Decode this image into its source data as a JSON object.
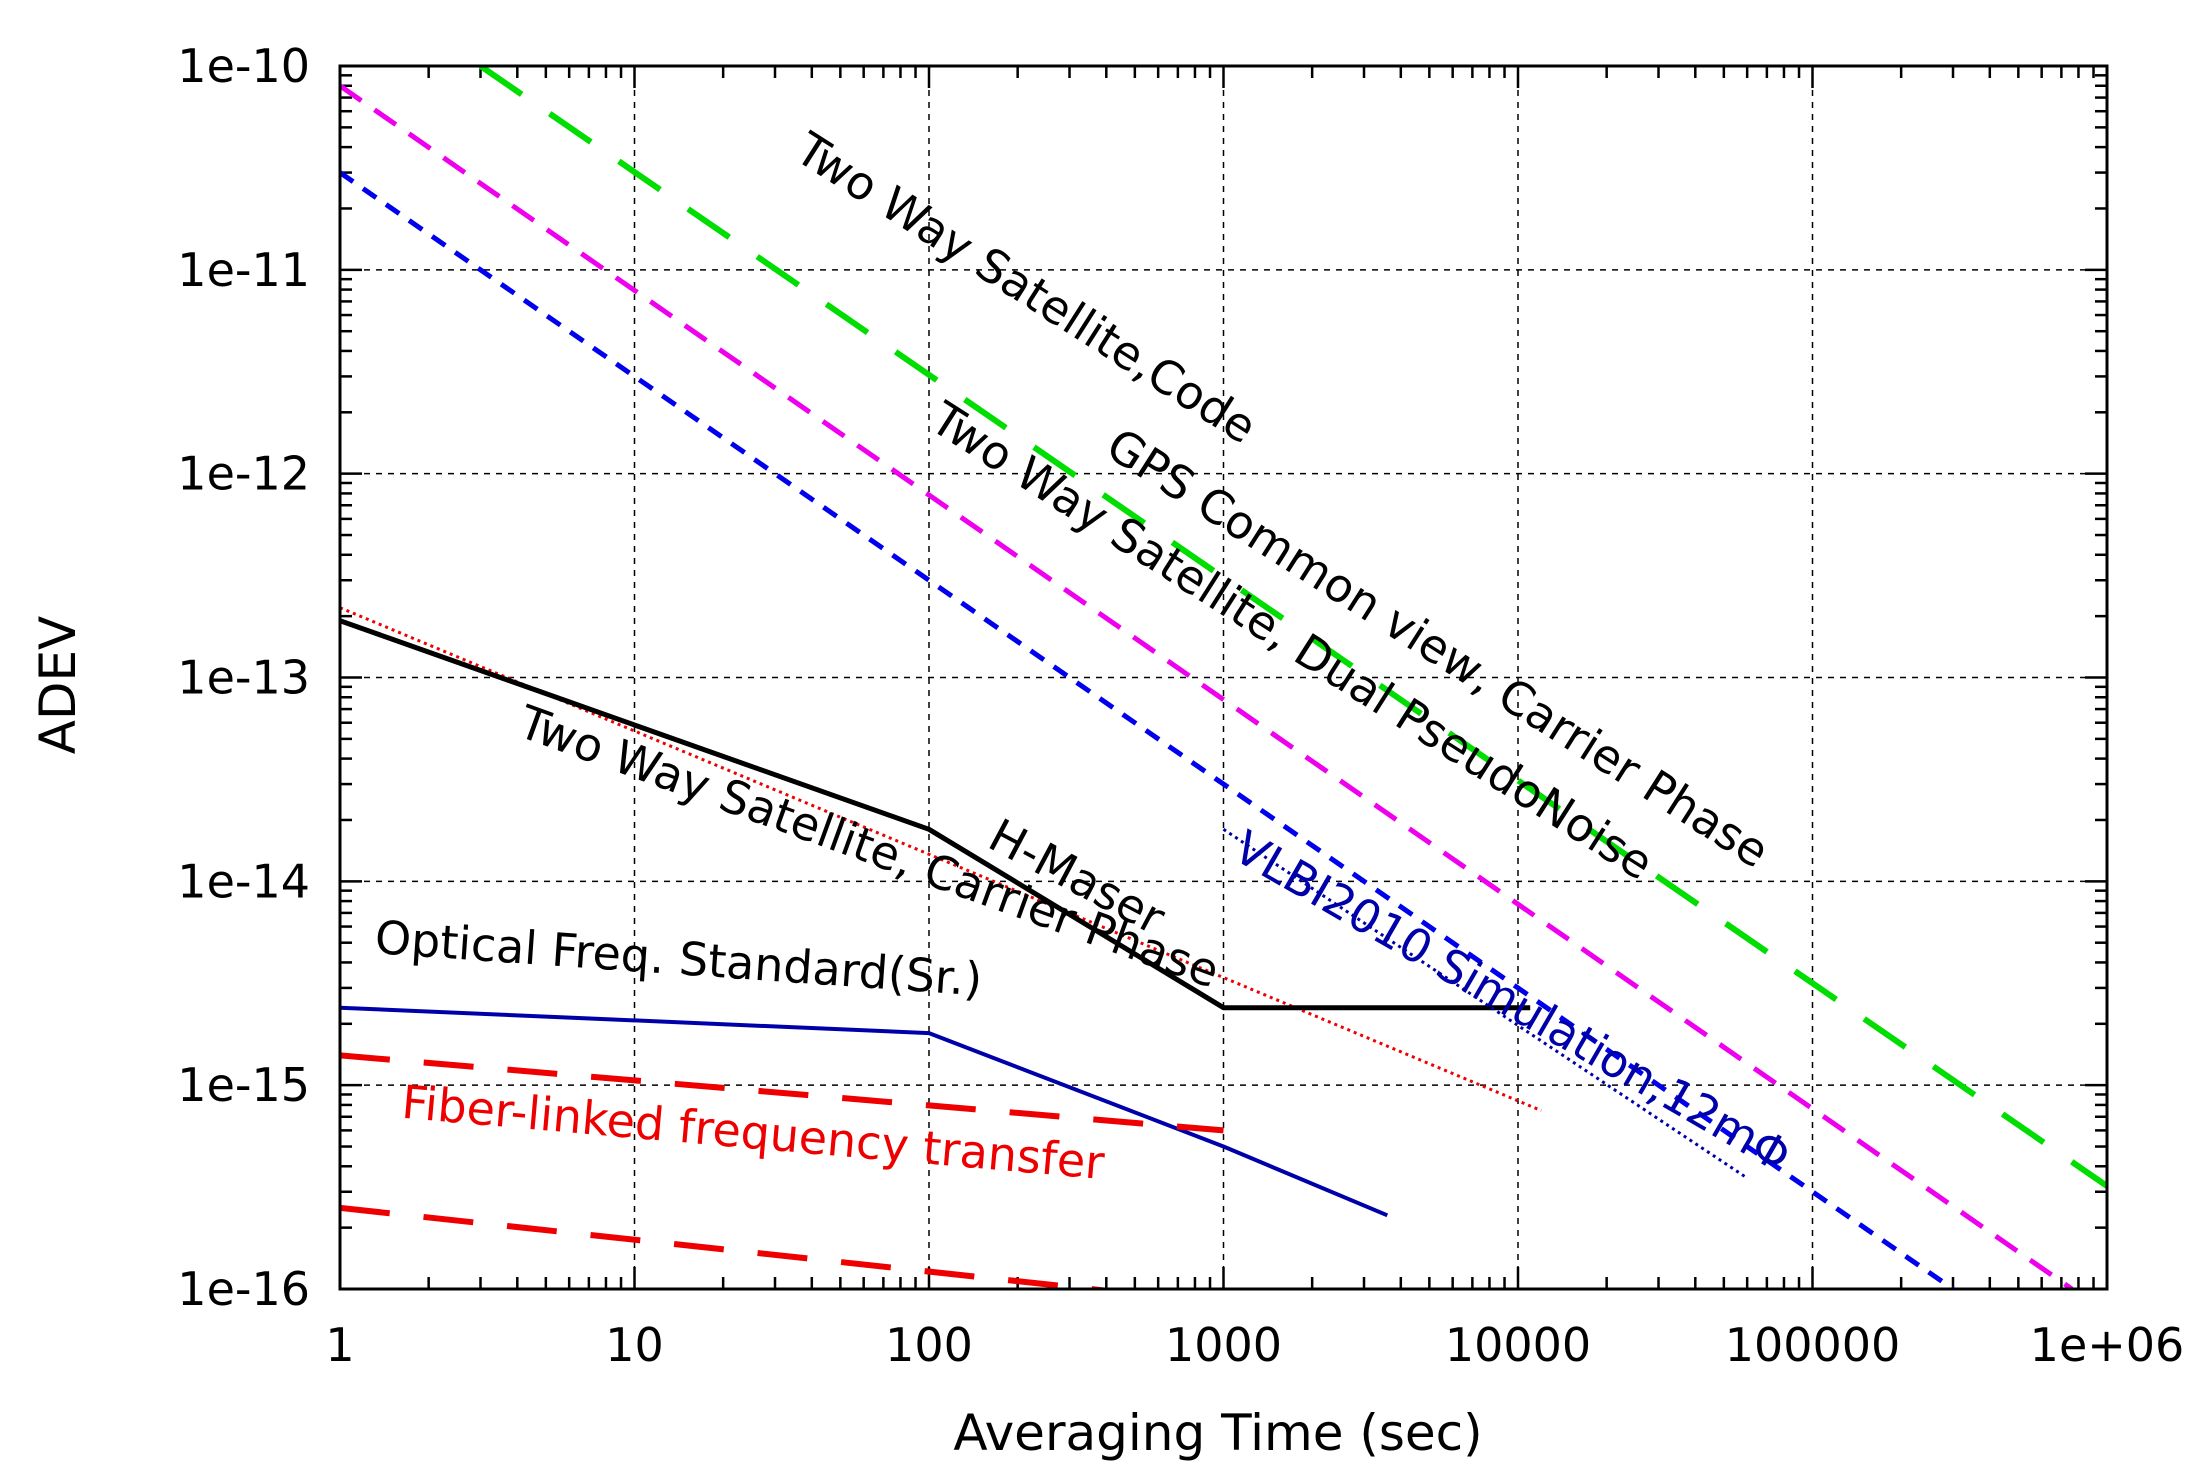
{
  "chart_data": {
    "type": "line",
    "title": "",
    "xlabel": "Averaging Time (sec)",
    "ylabel": "ADEV",
    "x_scale": "log",
    "y_scale": "log",
    "xlim": [
      1,
      1000000
    ],
    "ylim": [
      1e-16,
      1e-10
    ],
    "grid": true,
    "legend": "none",
    "x_ticks": [
      {
        "value": 1,
        "label": "1"
      },
      {
        "value": 10,
        "label": "10"
      },
      {
        "value": 100,
        "label": "100"
      },
      {
        "value": 1000,
        "label": "1000"
      },
      {
        "value": 10000,
        "label": "10000"
      },
      {
        "value": 100000,
        "label": "100000"
      },
      {
        "value": 1000000,
        "label": "1e+06"
      }
    ],
    "y_ticks": [
      {
        "value": 1e-10,
        "label": "1e-10"
      },
      {
        "value": 1e-11,
        "label": "1e-11"
      },
      {
        "value": 1e-12,
        "label": "1e-12"
      },
      {
        "value": 1e-13,
        "label": "1e-13"
      },
      {
        "value": 1e-14,
        "label": "1e-14"
      },
      {
        "value": 1e-15,
        "label": "1e-15"
      },
      {
        "value": 1e-16,
        "label": "1e-16"
      }
    ],
    "series": [
      {
        "id": "tws-code",
        "color": "#00dd00",
        "style": "long-dash",
        "width": 6,
        "x": [
          3,
          1000000
        ],
        "y": [
          1e-10,
          3.2e-16
        ]
      },
      {
        "id": "gps-cv",
        "color": "#ee00ee",
        "style": "dash",
        "width": 5,
        "x": [
          1,
          760000
        ],
        "y": [
          8e-11,
          1e-16
        ]
      },
      {
        "id": "tws-dpn",
        "color": "#0000ee",
        "style": "short-dash",
        "width": 5,
        "x": [
          1,
          300000
        ],
        "y": [
          3e-11,
          1e-16
        ]
      },
      {
        "id": "tws-cp",
        "color": "#ee0000",
        "style": "dotted",
        "width": 3,
        "x": [
          1,
          12000
        ],
        "y": [
          2.2e-13,
          7.5e-16
        ]
      },
      {
        "id": "h-maser",
        "color": "#000000",
        "style": "solid",
        "width": 5,
        "x": [
          1,
          100,
          1000,
          11000
        ],
        "y": [
          1.9e-13,
          1.8e-14,
          2.4e-15,
          2.4e-15
        ]
      },
      {
        "id": "optical-sr",
        "color": "#0000aa",
        "style": "solid",
        "width": 4,
        "x": [
          1,
          100,
          1000,
          3600
        ],
        "y": [
          2.4e-15,
          1.8e-15,
          5e-16,
          2.3e-16
        ]
      },
      {
        "id": "vlbi2010",
        "color": "#0000aa",
        "style": "dotted",
        "width": 3,
        "x": [
          1000,
          60000
        ],
        "y": [
          1.8e-14,
          3.5e-16
        ]
      },
      {
        "id": "fiber-upper",
        "color": "#ee0000",
        "style": "long-dash",
        "width": 6,
        "x": [
          1,
          1000
        ],
        "y": [
          1.4e-15,
          6e-16
        ]
      },
      {
        "id": "fiber-lower",
        "color": "#ee0000",
        "style": "long-dash",
        "width": 6,
        "x": [
          1,
          1000
        ],
        "y": [
          2.5e-16,
          8.5e-17
        ]
      }
    ],
    "annotations": [
      {
        "id": "tws-code",
        "text": "Two Way Satellite,Code",
        "color": "#000000",
        "x": 200,
        "y": 7e-12,
        "angle": 32.5
      },
      {
        "id": "gps-cv",
        "text": "GPS Common view, Carrier Phase",
        "color": "#000000",
        "x": 5000,
        "y": 1.2e-13,
        "angle": 32.5
      },
      {
        "id": "tws-dpn",
        "text": "Two Way Satellite, Dual PseudoNoise",
        "color": "#000000",
        "x": 1600,
        "y": 1.3e-13,
        "angle": 32.5
      },
      {
        "id": "tws-cp",
        "text": "Two Way Satellite, Carrier Phase",
        "color": "#000000",
        "x": 60,
        "y": 1.25e-14,
        "angle": 20
      },
      {
        "id": "h-maser",
        "text": "H-Maser",
        "color": "#000000",
        "x": 300,
        "y": 9e-15,
        "angle": 28
      },
      {
        "id": "optical-sr",
        "text": "Optical Freq. Standard(Sr.)",
        "color": "#000000",
        "x": 14,
        "y": 3.5e-15,
        "angle": 4
      },
      {
        "id": "vlbi2010",
        "text": "VLBI2010 Simulation,12mΦ",
        "color": "#0000aa",
        "x": 9000,
        "y": 2.2e-15,
        "angle": 30
      },
      {
        "id": "fiber",
        "text": "Fiber-linked frequency transfer",
        "color": "#ee0000",
        "x": 25,
        "y": 4.9e-16,
        "angle": 5
      }
    ]
  }
}
